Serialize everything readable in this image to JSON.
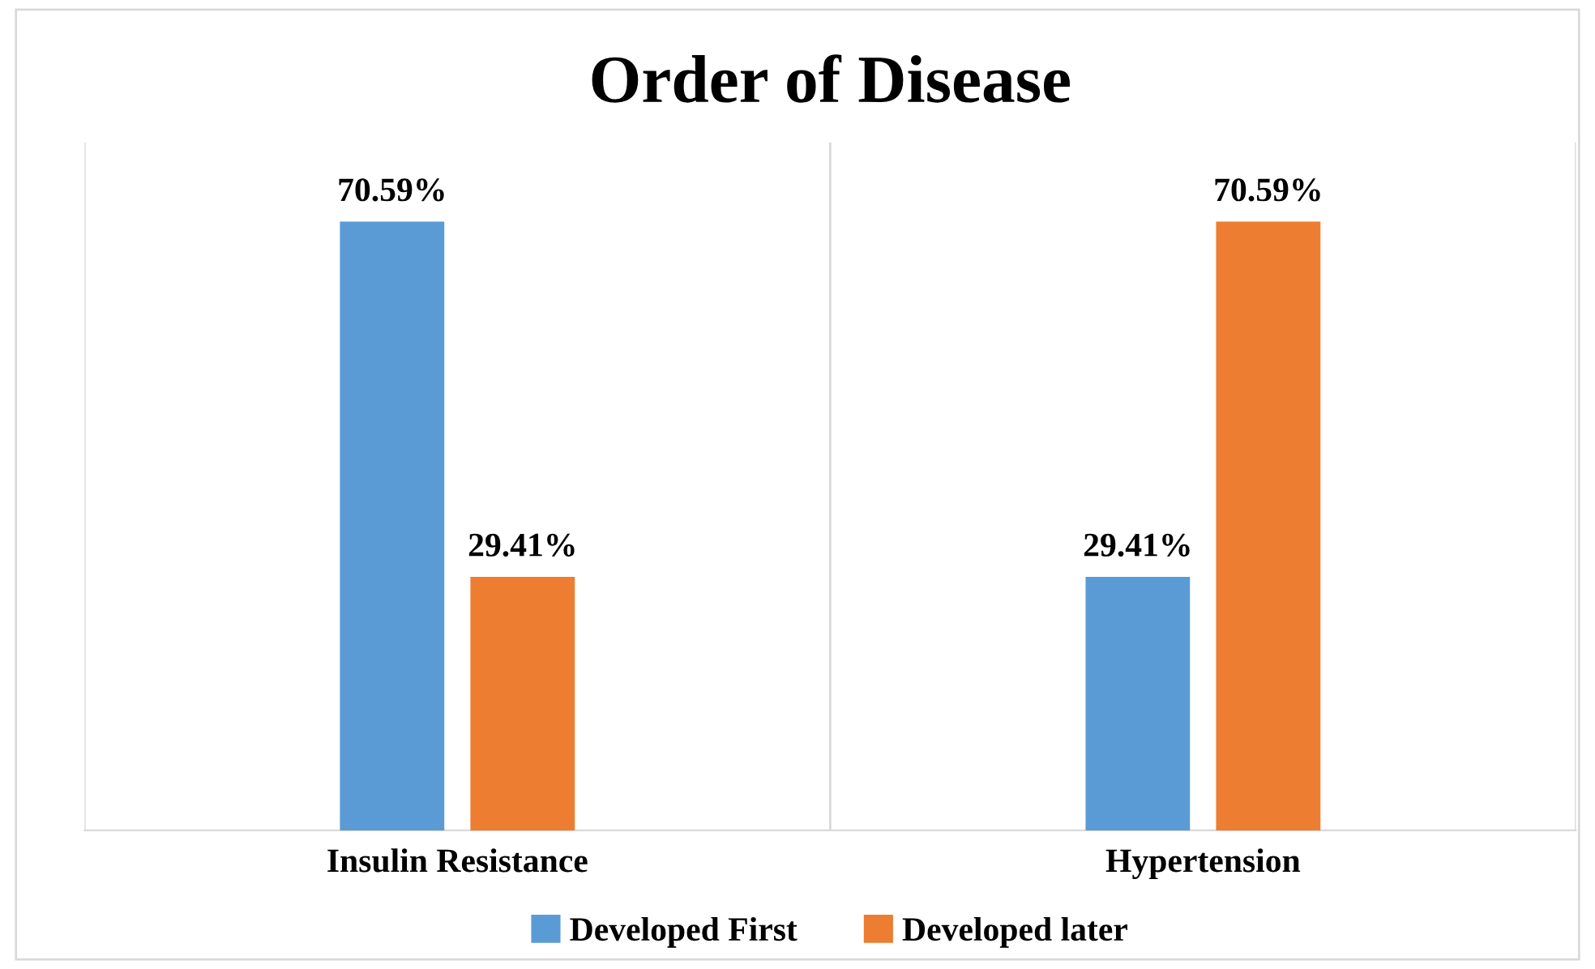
{
  "chart_data": {
    "type": "bar",
    "title": "Order of Disease",
    "categories": [
      "Insulin Resistance",
      "Hypertension"
    ],
    "series": [
      {
        "name": "Developed First",
        "color": "#5b9bd5",
        "values": [
          70.59,
          29.41
        ],
        "value_labels": [
          "70.59%",
          "29.41%"
        ]
      },
      {
        "name": "Developed later",
        "color": "#ed7d31",
        "values": [
          29.41,
          70.59
        ],
        "value_labels": [
          "29.41%",
          "70.59%"
        ]
      }
    ],
    "grid": "x",
    "legend": "bottom"
  }
}
